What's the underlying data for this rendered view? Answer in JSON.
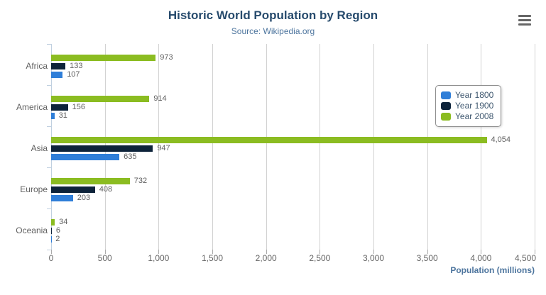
{
  "header": {
    "title": "Historic World Population by Region",
    "subtitle": "Source: Wikipedia.org"
  },
  "menu": {
    "icon": "hamburger-context-menu-icon"
  },
  "colors": {
    "title": "#274b6d",
    "subtitle": "#4d759e",
    "axis_labels": "#666666",
    "data_labels": "#606060",
    "gridline": "#d2d2d2",
    "category_axis_line": "#c0d0e0",
    "legend_text": "#3e576f",
    "menu_icon": "#666666"
  },
  "chart_data": {
    "type": "bar",
    "orientation": "horizontal",
    "title": "Historic World Population by Region",
    "subtitle": "Source: Wikipedia.org",
    "categories": [
      "Africa",
      "America",
      "Asia",
      "Europe",
      "Oceania"
    ],
    "series": [
      {
        "name": "Year 1800",
        "color": "#2f7ed8",
        "values": [
          107,
          31,
          635,
          203,
          2
        ]
      },
      {
        "name": "Year 1900",
        "color": "#0d233a",
        "values": [
          133,
          156,
          947,
          408,
          6
        ]
      },
      {
        "name": "Year 2008",
        "color": "#8bbc21",
        "values": [
          973,
          914,
          4054,
          732,
          34
        ]
      }
    ],
    "series_display_order_top_to_bottom": [
      "Year 2008",
      "Year 1900",
      "Year 1800"
    ],
    "data_labels_shown": true,
    "xlabel": "Population (millions)",
    "ylabel": "",
    "xlim": [
      0,
      4500
    ],
    "x_ticks": [
      "0",
      "500",
      "1,000",
      "1,500",
      "2,000",
      "2,500",
      "3,000",
      "3,500",
      "4,000",
      "4,500"
    ],
    "grid": true,
    "legend_position": "right"
  }
}
